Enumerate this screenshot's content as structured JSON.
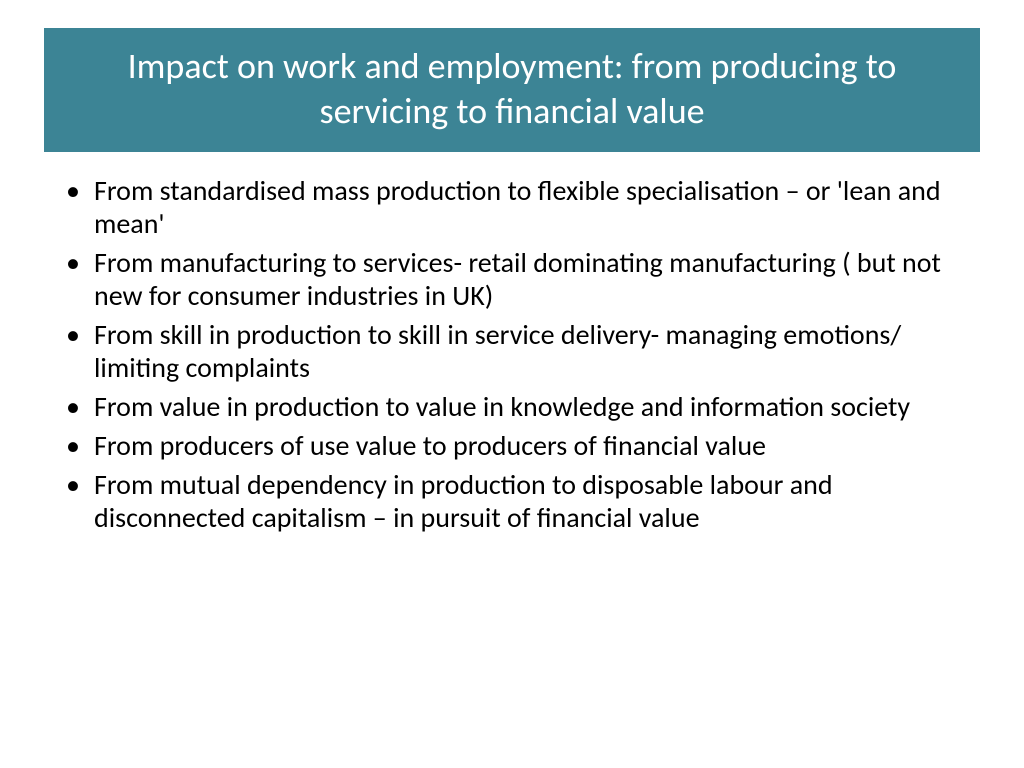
{
  "slide": {
    "title": "Impact on work and employment: from producing to servicing to financial value",
    "title_bg": "#3c8495",
    "title_color": "#ffffff",
    "title_fontsize": 36,
    "body_fontsize": 28,
    "body_color": "#000000",
    "background_color": "#ffffff",
    "bullets": [
      "From standardised mass production to flexible specialisation – or 'lean and mean'",
      "From manufacturing to services- retail dominating manufacturing  ( but not new for consumer industries in UK)",
      "From skill in production to skill in service delivery- managing emotions/ limiting complaints",
      "From value in production to value in knowledge and information society",
      "From producers of use value to producers of financial value",
      "From mutual dependency in production  to disposable labour and disconnected capitalism – in pursuit of financial value"
    ]
  }
}
